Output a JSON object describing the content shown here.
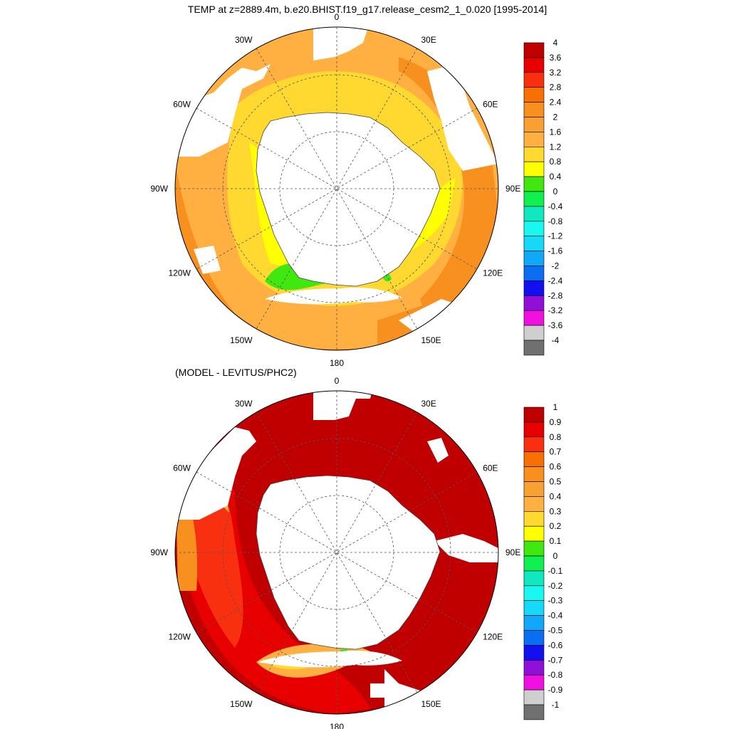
{
  "palette": [
    "#707070",
    "#cfcfcf",
    "#f010e0",
    "#9010d8",
    "#1010f0",
    "#0a6ef0",
    "#10a8f8",
    "#18d8f8",
    "#18f8f0",
    "#10e8c0",
    "#10f050",
    "#40e810",
    "#ffff00",
    "#ffd830",
    "#ffb040",
    "#f8a030",
    "#f89020",
    "#f87000",
    "#f83010",
    "#e80000",
    "#c00000"
  ],
  "chart_data": [
    {
      "type": "heatmap",
      "title": "TEMP at z=2889.4m, b.e20.BHIST.f19_g17.release_cesm2_1_0.020 [1995-2014]",
      "projection": "south-polar-stereographic",
      "longitude_labels": [
        "0",
        "30E",
        "60E",
        "90E",
        "120E",
        "150E",
        "180",
        "150W",
        "120W",
        "90W",
        "60W",
        "30W"
      ],
      "colorbar_levels": [
        "4",
        "3.6",
        "3.2",
        "2.8",
        "2.4",
        "2",
        "1.6",
        "1.2",
        "0.8",
        "0.4",
        "0",
        "-0.4",
        "-0.8",
        "-1.2",
        "-1.6",
        "-2",
        "-2.4",
        "-2.8",
        "-3.2",
        "-3.6",
        "-4"
      ],
      "colorbar_range": [
        -4,
        4
      ],
      "colorbar_step": 0.4,
      "field": {
        "north_atlantic_sector": 1.4,
        "indian_sector": 1.8,
        "pacific_outer": 2.2,
        "weddell_shelf": 1.0,
        "ross_sea": 0.6,
        "east_pacific_outer": 2.6
      }
    },
    {
      "type": "heatmap",
      "title": "(MODEL - LEVITUS/PHC2)",
      "projection": "south-polar-stereographic",
      "longitude_labels": [
        "0",
        "30E",
        "60E",
        "90E",
        "120E",
        "150E",
        "180",
        "150W",
        "120W",
        "90W",
        "60W",
        "30W"
      ],
      "colorbar_levels": [
        "1",
        "0.9",
        "0.8",
        "0.7",
        "0.6",
        "0.5",
        "0.4",
        "0.3",
        "0.2",
        "0.1",
        "0",
        "-0.1",
        "-0.2",
        "-0.3",
        "-0.4",
        "-0.5",
        "-0.6",
        "-0.7",
        "-0.8",
        "-0.9",
        "-1"
      ],
      "colorbar_range": [
        -1,
        1
      ],
      "colorbar_step": 0.1,
      "field": {
        "atlantic_indian_sector": 1.0,
        "pacific_sector": 0.8,
        "southeast_pacific": 0.7,
        "southwest_atlantic_margin": 0.6,
        "ross_sea_shelf": 0.4
      }
    }
  ]
}
